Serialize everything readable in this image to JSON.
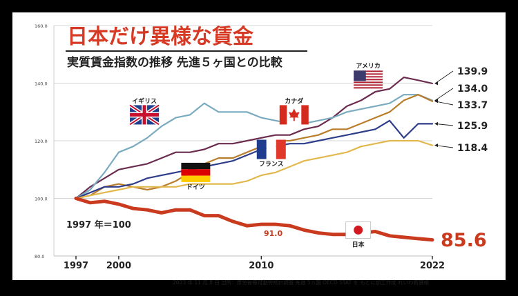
{
  "chart_data": {
    "type": "line",
    "title": "日本だけ異様な賃金",
    "subtitle": "実質賃金指数の推移 先進５ヶ国との比較",
    "base_note": "1997 年＝100",
    "source": "2023 年 11 月 8 日 出所：厚労省毎月勤労統計調査 先進 5ヵ国 OECD STAT を もとに加工作成 れいわ新選組",
    "x_ticks": [
      "1997",
      "2000",
      "2010",
      "2022"
    ],
    "y_ticks": [
      "80.0",
      "100.0",
      "120.0",
      "140.0",
      "160.0"
    ],
    "xlim": [
      1997,
      2022
    ],
    "ylim": [
      80,
      160
    ],
    "grid": true,
    "annotation": "91.0",
    "series": [
      {
        "key": "usa",
        "name": "アメリカ",
        "color": "#6b2b4f",
        "width": 2.2,
        "end_label": "139.9",
        "end_label_y": 139.9,
        "x": [
          1997,
          1998,
          1999,
          2000,
          2001,
          2002,
          2003,
          2004,
          2005,
          2006,
          2007,
          2008,
          2009,
          2010,
          2011,
          2012,
          2013,
          2014,
          2015,
          2016,
          2017,
          2018,
          2019,
          2020,
          2021,
          2022
        ],
        "values": [
          100,
          104,
          107,
          110,
          111,
          112,
          114,
          116,
          116,
          117,
          119,
          119,
          120,
          121,
          122,
          122,
          124,
          125,
          128,
          132,
          134,
          137,
          138,
          142,
          141,
          139.9
        ]
      },
      {
        "key": "uk",
        "name": "イギリス",
        "color": "#7aaabf",
        "width": 2.2,
        "end_label": "134.0",
        "end_label_y": 134.0,
        "x": [
          1997,
          1998,
          1999,
          2000,
          2001,
          2002,
          2003,
          2004,
          2005,
          2006,
          2007,
          2008,
          2009,
          2010,
          2011,
          2012,
          2013,
          2014,
          2015,
          2016,
          2017,
          2018,
          2019,
          2020,
          2021,
          2022
        ],
        "values": [
          100,
          103,
          109,
          116,
          118,
          121,
          125,
          128,
          129,
          133,
          130,
          130,
          130,
          128,
          127,
          126,
          126,
          127,
          128,
          130,
          131,
          132,
          133,
          136,
          136,
          134.0
        ]
      },
      {
        "key": "canada",
        "name": "カナダ",
        "color": "#b97d2a",
        "width": 2.2,
        "end_label": "133.7",
        "end_label_y": 133.7,
        "x": [
          1997,
          1998,
          1999,
          2000,
          2001,
          2002,
          2003,
          2004,
          2005,
          2006,
          2007,
          2008,
          2009,
          2010,
          2011,
          2012,
          2013,
          2014,
          2015,
          2016,
          2017,
          2018,
          2019,
          2020,
          2021,
          2022
        ],
        "values": [
          100,
          101,
          104,
          105,
          104,
          103,
          104,
          106,
          109,
          112,
          114,
          114,
          116,
          118,
          120,
          120,
          121,
          122,
          124,
          124,
          126,
          128,
          130,
          134,
          136,
          133.7
        ]
      },
      {
        "key": "france",
        "name": "フランス",
        "color": "#2e3d8a",
        "width": 2.2,
        "end_label": "125.9",
        "end_label_y": 125.9,
        "x": [
          1997,
          1998,
          1999,
          2000,
          2001,
          2002,
          2003,
          2004,
          2005,
          2006,
          2007,
          2008,
          2009,
          2010,
          2011,
          2012,
          2013,
          2014,
          2015,
          2016,
          2017,
          2018,
          2019,
          2020,
          2021,
          2022
        ],
        "values": [
          100,
          102,
          104,
          104,
          105,
          107,
          108,
          109,
          110,
          111,
          112,
          113,
          115,
          117,
          118,
          119,
          119,
          120,
          121,
          122,
          123,
          124,
          127,
          121,
          125.9,
          125.9
        ]
      },
      {
        "key": "germany",
        "name": "ドイツ",
        "color": "#e2b84c",
        "width": 2.2,
        "end_label": "118.4",
        "end_label_y": 118.4,
        "x": [
          1997,
          1998,
          1999,
          2000,
          2001,
          2002,
          2003,
          2004,
          2005,
          2006,
          2007,
          2008,
          2009,
          2010,
          2011,
          2012,
          2013,
          2014,
          2015,
          2016,
          2017,
          2018,
          2019,
          2020,
          2021,
          2022
        ],
        "values": [
          100,
          101,
          102,
          103,
          104,
          104,
          104,
          104,
          105,
          105,
          105,
          105,
          106,
          108,
          109,
          111,
          113,
          114,
          115,
          116,
          118,
          119,
          120,
          120,
          120,
          118.4
        ]
      },
      {
        "key": "japan",
        "name": "日本",
        "color": "#c93a1e",
        "width": 5,
        "end_label": "85.6",
        "end_label_y": 85.6,
        "x": [
          1997,
          1998,
          1999,
          2000,
          2001,
          2002,
          2003,
          2004,
          2005,
          2006,
          2007,
          2008,
          2009,
          2010,
          2011,
          2012,
          2013,
          2014,
          2015,
          2016,
          2017,
          2018,
          2019,
          2020,
          2021,
          2022
        ],
        "values": [
          100,
          98.5,
          99,
          98,
          96.5,
          96,
          95,
          96,
          96,
          94,
          94,
          92,
          90.5,
          91,
          91,
          90.5,
          89,
          88,
          87.5,
          87.5,
          88,
          88.5,
          87,
          86.5,
          86,
          85.6
        ]
      }
    ],
    "flags": [
      {
        "key": "uk",
        "label": "イギリス",
        "year": 2001.8,
        "value": 129
      },
      {
        "key": "canada",
        "label": "カナダ",
        "year": 2012.3,
        "value": 129
      },
      {
        "key": "usa",
        "label": "アメリカ",
        "year": 2017.5,
        "value": 141
      },
      {
        "key": "france",
        "label": "フランス",
        "year": 2010.7,
        "value": 117
      },
      {
        "key": "germany",
        "label": "ドイツ",
        "year": 2005.4,
        "value": 109
      },
      {
        "key": "japan",
        "label": "日本",
        "year": 2016.8,
        "value": 89
      }
    ]
  }
}
